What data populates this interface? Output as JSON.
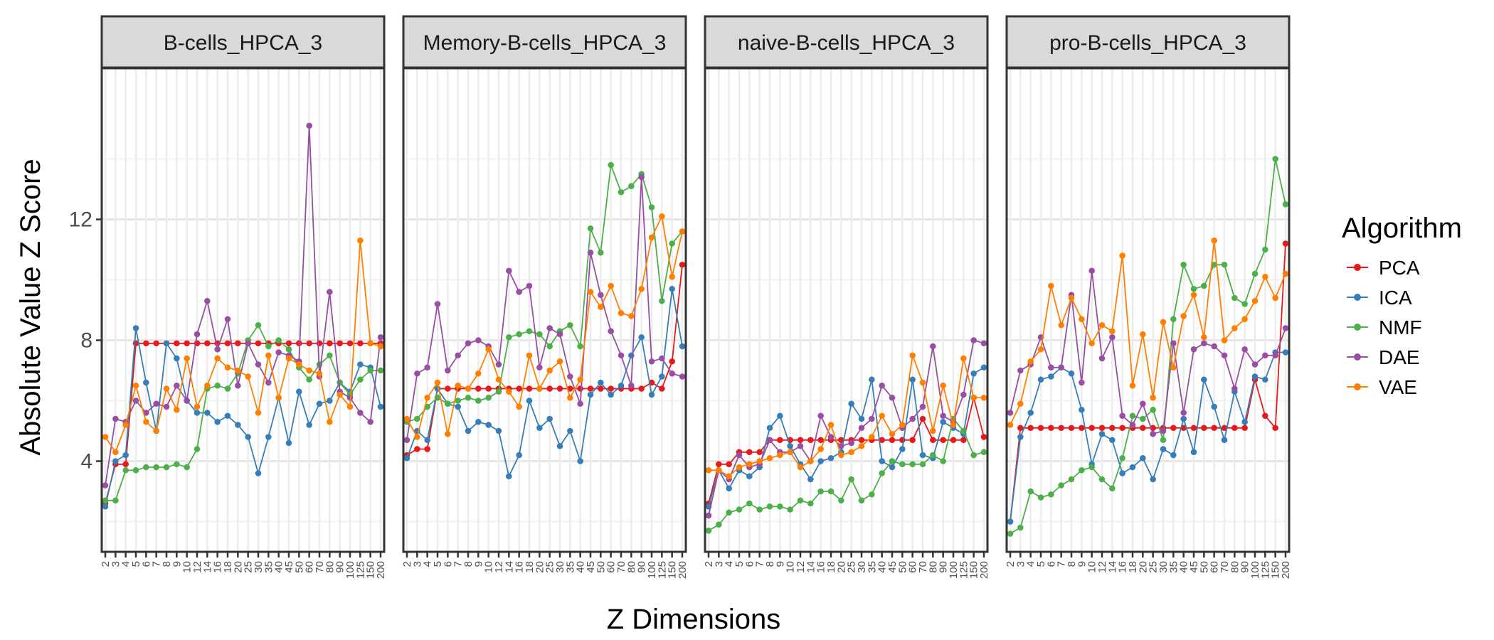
{
  "chart_data": {
    "type": "line",
    "xlabel": "Z Dimensions",
    "ylabel": "Absolute Value Z Score",
    "y_ticks": [
      4,
      8,
      12
    ],
    "ylim": [
      1,
      17
    ],
    "grid": true,
    "legend_title": "Algorithm",
    "legend_position": "right",
    "categories": [
      "2",
      "3",
      "4",
      "5",
      "6",
      "7",
      "8",
      "9",
      "10",
      "12",
      "14",
      "16",
      "18",
      "20",
      "25",
      "30",
      "35",
      "40",
      "45",
      "50",
      "60",
      "70",
      "80",
      "90",
      "100",
      "125",
      "150",
      "200"
    ],
    "series_colors": {
      "PCA": "#e41a1c",
      "ICA": "#377eb8",
      "NMF": "#4daf4a",
      "DAE": "#984ea3",
      "VAE": "#ff7f00"
    },
    "series_order": [
      "PCA",
      "ICA",
      "NMF",
      "DAE",
      "VAE"
    ],
    "panels": [
      {
        "name": "B-cells_HPCA_3",
        "series": [
          {
            "name": "PCA",
            "values": [
              2.6,
              3.9,
              3.9,
              7.9,
              7.9,
              7.9,
              7.9,
              7.9,
              7.9,
              7.9,
              7.9,
              7.9,
              7.9,
              7.9,
              7.9,
              7.9,
              7.9,
              7.9,
              7.9,
              7.9,
              7.9,
              7.9,
              7.9,
              7.9,
              7.9,
              7.9,
              7.9,
              7.9
            ]
          },
          {
            "name": "ICA",
            "values": [
              2.5,
              4.0,
              4.2,
              8.4,
              6.6,
              5.0,
              7.9,
              7.4,
              6.0,
              5.6,
              5.6,
              5.3,
              5.5,
              5.2,
              4.8,
              3.6,
              4.8,
              6.1,
              4.6,
              6.3,
              5.2,
              5.9,
              6.0,
              6.6,
              6.3,
              7.2,
              7.1,
              5.8
            ]
          },
          {
            "name": "NMF",
            "values": [
              2.7,
              2.7,
              3.7,
              3.7,
              3.8,
              3.8,
              3.8,
              3.9,
              3.8,
              4.4,
              6.4,
              6.5,
              6.4,
              6.9,
              8.0,
              8.5,
              7.8,
              8.0,
              7.7,
              7.1,
              6.7,
              7.2,
              7.5,
              6.6,
              6.2,
              6.7,
              7.0,
              7.0
            ]
          },
          {
            "name": "DAE",
            "values": [
              3.2,
              5.4,
              5.3,
              6.0,
              5.6,
              5.9,
              5.8,
              6.5,
              6.0,
              8.2,
              9.3,
              7.7,
              8.7,
              6.5,
              7.9,
              7.2,
              6.6,
              7.6,
              7.5,
              7.3,
              15.1,
              6.8,
              9.6,
              6.3,
              6.1,
              5.6,
              5.3,
              8.1
            ]
          },
          {
            "name": "VAE",
            "values": [
              4.8,
              4.3,
              5.2,
              6.5,
              5.3,
              5.0,
              6.4,
              5.7,
              7.4,
              5.8,
              6.5,
              7.4,
              7.1,
              7.0,
              6.8,
              5.6,
              7.5,
              6.1,
              7.4,
              7.2,
              7.0,
              6.9,
              5.3,
              6.2,
              5.8,
              11.3,
              7.9,
              7.8
            ]
          }
        ]
      },
      {
        "name": "Memory-B-cells_HPCA_3",
        "series": [
          {
            "name": "PCA",
            "values": [
              4.2,
              4.4,
              4.4,
              6.4,
              6.4,
              6.4,
              6.4,
              6.4,
              6.4,
              6.4,
              6.4,
              6.4,
              6.4,
              6.4,
              6.4,
              6.4,
              6.4,
              6.4,
              6.4,
              6.4,
              6.4,
              6.4,
              6.4,
              6.4,
              6.6,
              6.4,
              7.3,
              10.5
            ]
          },
          {
            "name": "ICA",
            "values": [
              4.1,
              5.0,
              4.7,
              6.4,
              5.9,
              5.8,
              5.0,
              5.3,
              5.2,
              5.0,
              3.5,
              4.2,
              6.0,
              5.1,
              5.4,
              4.5,
              5.0,
              4.0,
              6.2,
              6.6,
              6.2,
              6.5,
              7.5,
              8.1,
              6.2,
              6.8,
              9.7,
              7.8
            ]
          },
          {
            "name": "NMF",
            "values": [
              5.3,
              5.4,
              5.8,
              6.1,
              5.9,
              6.0,
              6.1,
              6.0,
              6.1,
              6.3,
              8.1,
              8.2,
              8.3,
              8.2,
              7.8,
              8.3,
              8.5,
              7.8,
              11.7,
              10.9,
              13.8,
              12.9,
              13.1,
              13.5,
              12.4,
              9.3,
              11.2,
              11.6
            ]
          },
          {
            "name": "DAE",
            "values": [
              4.7,
              6.9,
              7.1,
              9.2,
              7.0,
              7.5,
              7.9,
              8.0,
              7.8,
              7.2,
              10.3,
              9.6,
              9.8,
              7.1,
              8.4,
              8.2,
              6.8,
              5.9,
              10.9,
              9.5,
              8.3,
              7.5,
              6.5,
              13.4,
              7.3,
              7.4,
              6.9,
              6.8
            ]
          },
          {
            "name": "VAE",
            "values": [
              5.4,
              4.8,
              6.1,
              6.6,
              4.9,
              6.5,
              6.4,
              6.9,
              7.7,
              6.7,
              6.3,
              5.8,
              7.5,
              6.4,
              7.0,
              7.3,
              6.1,
              6.7,
              9.6,
              9.1,
              9.8,
              8.9,
              8.8,
              9.7,
              11.4,
              12.1,
              10.1,
              11.6
            ]
          }
        ]
      },
      {
        "name": "naive-B-cells_HPCA_3",
        "series": [
          {
            "name": "PCA",
            "values": [
              2.6,
              3.9,
              3.9,
              4.3,
              4.3,
              4.3,
              4.7,
              4.7,
              4.7,
              4.7,
              4.7,
              4.7,
              4.7,
              4.7,
              4.7,
              4.7,
              4.7,
              4.7,
              4.7,
              4.7,
              4.7,
              5.4,
              4.7,
              4.7,
              4.7,
              4.7,
              6.1,
              4.8
            ]
          },
          {
            "name": "ICA",
            "values": [
              2.5,
              3.7,
              3.1,
              3.7,
              3.5,
              3.8,
              5.1,
              5.5,
              4.5,
              3.9,
              3.4,
              4.0,
              4.1,
              4.3,
              5.9,
              5.4,
              6.7,
              4.0,
              3.8,
              4.4,
              6.7,
              4.2,
              4.1,
              5.3,
              5.1,
              4.9,
              6.9,
              7.1
            ]
          },
          {
            "name": "NMF",
            "values": [
              1.7,
              1.9,
              2.3,
              2.4,
              2.6,
              2.4,
              2.5,
              2.5,
              2.4,
              2.7,
              2.6,
              3.0,
              3.0,
              2.7,
              3.4,
              2.7,
              2.9,
              3.6,
              4.0,
              3.9,
              3.9,
              3.9,
              4.2,
              4.0,
              5.4,
              5.0,
              4.2,
              4.3
            ]
          },
          {
            "name": "DAE",
            "values": [
              2.2,
              3.7,
              3.4,
              4.2,
              3.8,
              3.9,
              4.7,
              4.3,
              4.3,
              4.5,
              4.0,
              5.5,
              4.8,
              4.5,
              4.6,
              5.1,
              5.4,
              6.5,
              6.1,
              5.1,
              5.4,
              5.8,
              7.8,
              5.5,
              5.3,
              6.2,
              8.0,
              7.9
            ]
          },
          {
            "name": "VAE",
            "values": [
              3.7,
              3.7,
              3.5,
              3.8,
              3.9,
              4.0,
              4.1,
              4.2,
              4.3,
              3.8,
              4.0,
              4.4,
              5.2,
              4.2,
              4.3,
              4.5,
              4.8,
              5.5,
              4.9,
              5.2,
              7.5,
              6.6,
              5.0,
              6.5,
              5.2,
              7.4,
              6.1,
              6.1
            ]
          }
        ]
      },
      {
        "name": "pro-B-cells_HPCA_3",
        "series": [
          {
            "name": "PCA",
            "values": [
              2.0,
              5.1,
              5.1,
              5.1,
              5.1,
              5.1,
              5.1,
              5.1,
              5.1,
              5.1,
              5.1,
              5.1,
              5.1,
              5.1,
              5.1,
              5.1,
              5.1,
              5.1,
              5.1,
              5.1,
              5.1,
              5.1,
              5.1,
              5.1,
              6.7,
              5.5,
              5.1,
              11.2
            ]
          },
          {
            "name": "ICA",
            "values": [
              2.0,
              4.8,
              5.6,
              6.7,
              6.8,
              7.1,
              6.9,
              5.7,
              3.9,
              4.9,
              4.7,
              3.6,
              3.8,
              4.1,
              3.4,
              4.4,
              4.2,
              5.4,
              4.3,
              6.7,
              5.8,
              4.7,
              6.3,
              5.3,
              6.8,
              6.7,
              7.6,
              7.6
            ]
          },
          {
            "name": "NMF",
            "values": [
              1.6,
              1.8,
              3.0,
              2.8,
              2.9,
              3.2,
              3.4,
              3.7,
              3.8,
              3.4,
              3.1,
              4.1,
              5.5,
              5.4,
              5.7,
              4.7,
              8.7,
              10.5,
              9.7,
              9.8,
              10.5,
              10.5,
              9.4,
              9.2,
              10.2,
              11.0,
              14.0,
              12.5
            ]
          },
          {
            "name": "DAE",
            "values": [
              5.6,
              7.0,
              7.2,
              8.1,
              7.1,
              7.1,
              9.5,
              6.6,
              10.3,
              7.4,
              8.1,
              5.5,
              5.2,
              5.9,
              4.9,
              5.0,
              7.9,
              5.6,
              7.7,
              7.9,
              7.8,
              7.5,
              6.4,
              7.7,
              7.2,
              7.5,
              7.5,
              8.4
            ]
          },
          {
            "name": "VAE",
            "values": [
              5.2,
              5.9,
              7.3,
              7.7,
              9.8,
              8.5,
              9.4,
              8.7,
              7.9,
              8.5,
              8.3,
              10.8,
              6.5,
              8.2,
              6.1,
              8.6,
              7.1,
              8.8,
              9.5,
              8.1,
              11.3,
              8.0,
              8.4,
              8.7,
              9.3,
              10.1,
              9.4,
              10.2
            ]
          }
        ]
      }
    ]
  }
}
